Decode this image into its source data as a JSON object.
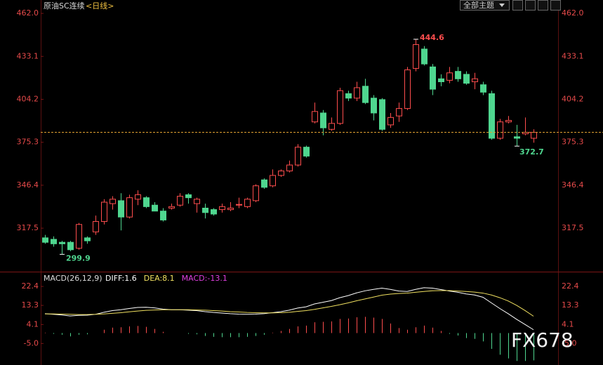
{
  "chart_data": [
    {
      "type": "candlestick",
      "title": "原油SC连续",
      "subtitle": "<日线>",
      "open": [
        311,
        310,
        308,
        308,
        304,
        311,
        315,
        322,
        334,
        336,
        325,
        337,
        338,
        333,
        329,
        331,
        333,
        340,
        334,
        331,
        330,
        330,
        330,
        333,
        332,
        336,
        350,
        346,
        353,
        356,
        360,
        372,
        389,
        395,
        384,
        388,
        408,
        405,
        413,
        405,
        404,
        387,
        393,
        398,
        425,
        438,
        426,
        418,
        417,
        423,
        421,
        416,
        414,
        408,
        378,
        389,
        379,
        381,
        378
      ],
      "high": [
        313,
        312,
        309,
        309,
        321,
        312,
        326,
        337,
        339,
        341,
        340,
        343,
        339,
        335,
        331,
        334,
        341,
        341,
        338,
        334,
        331,
        334,
        335,
        338,
        338,
        347,
        351,
        357,
        357,
        363,
        374,
        373,
        402,
        397,
        392,
        412,
        410,
        416,
        418,
        407,
        405,
        395,
        402,
        426,
        444.6,
        440,
        428,
        421,
        426,
        426,
        423,
        422,
        416,
        410,
        391,
        393,
        387,
        392,
        384
      ],
      "low": [
        307,
        305,
        299.9,
        302,
        303,
        307,
        313,
        320,
        330,
        316,
        324,
        333,
        331,
        329,
        322,
        330,
        332,
        334,
        328,
        324,
        326,
        328,
        329,
        331,
        331,
        335,
        344,
        345,
        352,
        355,
        359,
        365,
        388,
        380,
        383,
        387,
        403,
        403,
        401,
        390,
        383,
        385,
        389,
        397,
        423,
        427,
        407,
        413,
        415,
        416,
        414,
        411,
        407,
        377,
        377,
        388,
        372.7,
        380,
        375
      ],
      "close": [
        308,
        307,
        307,
        303,
        320,
        309,
        322,
        335,
        337,
        325,
        338,
        340,
        332,
        329,
        323,
        332,
        339,
        338,
        337,
        328,
        327,
        332,
        331,
        333.5,
        337,
        346,
        345,
        353,
        356,
        360,
        372,
        366,
        396,
        385,
        388,
        410,
        405,
        412,
        402,
        395,
        384,
        392,
        398,
        424,
        441,
        428,
        411,
        416,
        422,
        418,
        415,
        418,
        409,
        378,
        389,
        390,
        378,
        382,
        382
      ],
      "up_color": "#ff4d4d",
      "down_color": "#4fd68f",
      "ylim": [
        289.2,
        464.4
      ],
      "yticks": [
        {
          "value": 317.5,
          "label": "317.5"
        },
        {
          "value": 346.4,
          "label": "346.4"
        },
        {
          "value": 375.3,
          "label": "375.3"
        },
        {
          "value": 404.2,
          "label": "404.2"
        },
        {
          "value": 433.1,
          "label": "433.1"
        },
        {
          "value": 462,
          "label": "462.0"
        }
      ]
    },
    {
      "type": "macd",
      "legend_title": "MACD(26,12,9)",
      "series": [
        {
          "name": "DIFF",
          "label": "DIFF:1.6",
          "color": "#ffffff",
          "values": [
            9.3,
            9.0,
            8.7,
            8.2,
            8.5,
            8.6,
            9.0,
            10.0,
            10.8,
            11.2,
            11.8,
            12.3,
            12.4,
            12.1,
            11.5,
            11.2,
            11.2,
            11.0,
            10.8,
            10.3,
            9.9,
            9.6,
            9.3,
            9.1,
            9.0,
            9.1,
            9.3,
            9.8,
            10.3,
            11.0,
            12.0,
            12.6,
            14.0,
            14.8,
            15.6,
            17.0,
            18.0,
            19.3,
            20.3,
            21.0,
            21.6,
            21.0,
            20.2,
            20.0,
            21.0,
            21.8,
            21.6,
            20.9,
            20.2,
            19.6,
            18.8,
            18.3,
            17.2,
            14.5,
            11.8,
            9.3,
            6.6,
            4.1,
            1.6
          ]
        },
        {
          "name": "DEA",
          "label": "DEA:8.1",
          "color": "#f0e060",
          "values": [
            9.2,
            9.2,
            9.1,
            9.0,
            8.9,
            8.9,
            9.0,
            9.2,
            9.5,
            9.8,
            10.2,
            10.6,
            10.9,
            11.1,
            11.2,
            11.2,
            11.2,
            11.2,
            11.1,
            11.0,
            10.8,
            10.6,
            10.3,
            10.1,
            9.9,
            9.8,
            9.7,
            9.7,
            9.8,
            10.0,
            10.4,
            10.8,
            11.4,
            12.1,
            12.8,
            13.6,
            14.5,
            15.5,
            16.4,
            17.3,
            18.2,
            18.7,
            19.0,
            19.2,
            19.6,
            20.0,
            20.3,
            20.4,
            20.4,
            20.2,
            20.0,
            19.7,
            19.2,
            18.3,
            17.0,
            15.4,
            13.3,
            10.8,
            8.1
          ]
        },
        {
          "name": "MACD",
          "label": "MACD:-13.1",
          "color": "#e040e0",
          "values": [
            0.2,
            -0.4,
            -0.8,
            -1.6,
            -0.8,
            -0.6,
            0.0,
            1.6,
            2.6,
            2.8,
            3.2,
            3.4,
            3.0,
            2.0,
            0.6,
            0.0,
            0.0,
            -0.4,
            -0.6,
            -1.4,
            -1.8,
            -2.0,
            -2.0,
            -2.0,
            -1.8,
            -1.4,
            -0.8,
            0.2,
            1.0,
            2.0,
            3.2,
            3.6,
            5.2,
            5.4,
            5.6,
            6.8,
            7.0,
            7.6,
            7.8,
            7.4,
            6.8,
            4.6,
            2.4,
            1.6,
            2.8,
            3.6,
            2.6,
            1.0,
            -0.4,
            -1.2,
            -2.4,
            -2.8,
            -4.0,
            -7.6,
            -10.4,
            -12.2,
            -13.4,
            -13.4,
            -13.1
          ]
        }
      ],
      "up_color": "#ff4d4d",
      "down_color": "#4fd68f",
      "ylim": [
        -14.0,
        28.5
      ],
      "yticks": [
        {
          "value": -5,
          "label": "-5.0"
        },
        4.1,
        13.3,
        22.4
      ]
    }
  ],
  "toolbar": {
    "theme": "全部主题"
  },
  "watermark": "FX678"
}
